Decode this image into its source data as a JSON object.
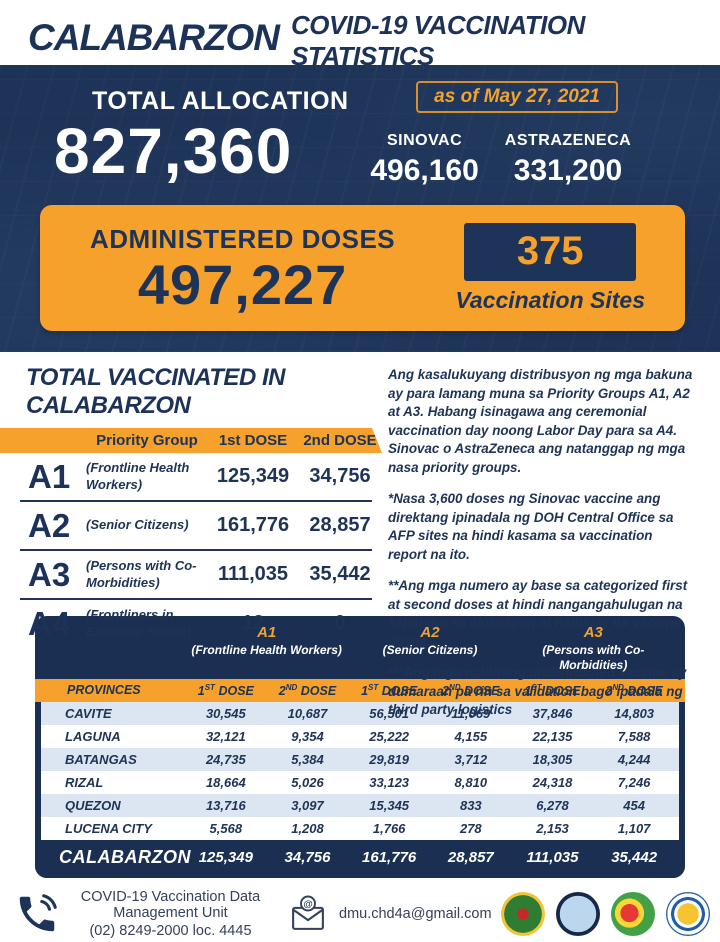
{
  "page": {
    "title_main": "CALABARZON",
    "title_sub": "COVID-19 VACCINATION STATISTICS"
  },
  "hero": {
    "total_allocation_label": "TOTAL ALLOCATION",
    "as_of": "as of May 27, 2021",
    "total_allocation_value": "827,360",
    "vaccines": [
      {
        "name": "SINOVAC",
        "value": "496,160"
      },
      {
        "name": "ASTRAZENECA",
        "value": "331,200"
      }
    ]
  },
  "administered": {
    "label": "ADMINISTERED DOSES",
    "value": "497,227",
    "sites_count": "375",
    "sites_label": "Vaccination Sites"
  },
  "priority_table": {
    "title": "TOTAL VACCINATED IN CALABARZON",
    "headers": {
      "group": "Priority Group",
      "dose1": "1st DOSE",
      "dose2": "2nd DOSE"
    },
    "rows": [
      {
        "code": "A1",
        "desc": "(Frontline Health Workers)",
        "dose1": "125,349",
        "dose2": "34,756"
      },
      {
        "code": "A2",
        "desc": "(Senior Citizens)",
        "dose1": "161,776",
        "dose2": "28,857"
      },
      {
        "code": "A3",
        "desc": "(Persons with Co-Morbidities)",
        "dose1": "111,035",
        "dose2": "35,442"
      },
      {
        "code": "A4",
        "desc": "(Frontliners in Essential Sector)",
        "dose1": "12",
        "dose2": "0"
      }
    ]
  },
  "notes": {
    "paragraphs": [
      "Ang kasalukuyang distribusyon ng mga bakuna ay para lamang muna sa Priority Groups A1, A2 at A3. Habang isinagawa ang ceremonial vaccination day noong Labor Day para sa A4. Sinovac o AstraZeneca ang natanggap ng mga nasa priority groups.",
      "*Nasa 3,600 doses ng Sinovac vaccine ang direktang ipinadala ng DOH Central Office sa AFP sites na hindi kasama sa vaccination report na ito.",
      "**Ang mga numero ay base sa categorized first at second doses at hindi nangangahulugan na kapareho sa alokasyon at naibigay na vaccine doses.",
      "***Ang mga natitirang undistributed vaccine ay dumaraan pa rin sa validation bago ipadala ng third party logistics"
    ]
  },
  "provinces_table": {
    "groups": [
      {
        "code": "A1",
        "desc": "(Frontline Health Workers)"
      },
      {
        "code": "A2",
        "desc": "(Senior Citizens)"
      },
      {
        "code": "A3",
        "desc": "(Persons with Co-Morbidities)"
      }
    ],
    "province_header": "PROVINCES",
    "dose_headers": [
      {
        "num": "1",
        "sup": "ST",
        "word": "DOSE"
      },
      {
        "num": "2",
        "sup": "ND",
        "word": "DOSE"
      }
    ],
    "rows": [
      {
        "province": "CAVITE",
        "values": [
          "30,545",
          "10,687",
          "56,501",
          "11,069",
          "37,846",
          "14,803"
        ]
      },
      {
        "province": "LAGUNA",
        "values": [
          "32,121",
          "9,354",
          "25,222",
          "4,155",
          "22,135",
          "7,588"
        ]
      },
      {
        "province": "BATANGAS",
        "values": [
          "24,735",
          "5,384",
          "29,819",
          "3,712",
          "18,305",
          "4,244"
        ]
      },
      {
        "province": "RIZAL",
        "values": [
          "18,664",
          "5,026",
          "33,123",
          "8,810",
          "24,318",
          "7,246"
        ]
      },
      {
        "province": "QUEZON",
        "values": [
          "13,716",
          "3,097",
          "15,345",
          "833",
          "6,278",
          "454"
        ]
      },
      {
        "province": "LUCENA CITY",
        "values": [
          "5,568",
          "1,208",
          "1,766",
          "278",
          "2,153",
          "1,107"
        ]
      }
    ],
    "total_row": {
      "label": "CALABARZON",
      "values": [
        "125,349",
        "34,756",
        "161,776",
        "28,857",
        "111,035",
        "35,442"
      ]
    }
  },
  "footer": {
    "unit_name": "COVID-19 Vaccination Data Management Unit",
    "phone": "(02) 8249-2000 loc. 4445",
    "email": "dmu.chd4a@gmail.com",
    "logos": [
      "doh-seal-logo",
      "region-map-logo",
      "vaccination-program-logo",
      "community-seal-logo"
    ]
  },
  "colors": {
    "navy": "#1d3357",
    "navy_dark": "#1b2f52",
    "orange": "#f5a12c",
    "gold_text": "#f0a232",
    "stripe_blue": "#dbe6f2"
  }
}
